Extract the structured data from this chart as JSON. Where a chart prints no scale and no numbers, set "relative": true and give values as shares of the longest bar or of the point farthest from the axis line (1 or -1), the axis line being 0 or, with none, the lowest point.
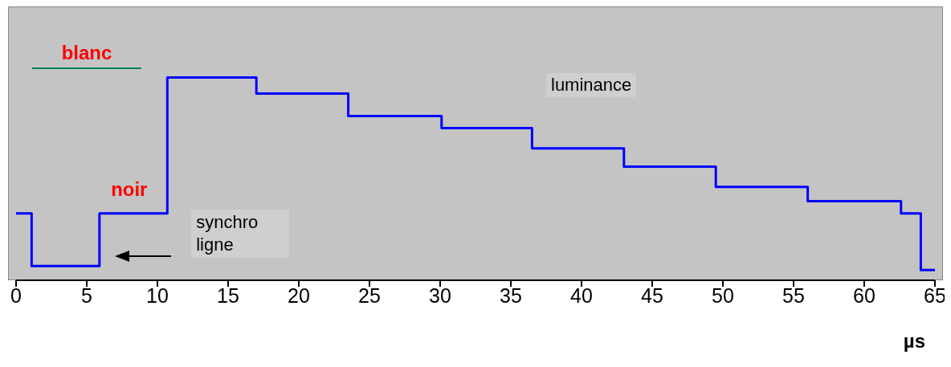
{
  "chart_data": {
    "type": "step",
    "relative": true,
    "xlabel": "µs",
    "xlim": [
      0,
      65
    ],
    "xticks": [
      0,
      5,
      10,
      15,
      20,
      25,
      30,
      35,
      40,
      45,
      50,
      55,
      60,
      65
    ],
    "marker": "none",
    "line_style": "solid",
    "annotations": [
      "blanc",
      "noir",
      "synchro ligne",
      "luminance"
    ],
    "series": [
      {
        "color": "#0000ff",
        "x": [
          0,
          1.0,
          1.1,
          5.9,
          10.5,
          10.7,
          17.0,
          23.5,
          30.1,
          36.5,
          43.0,
          49.5,
          56.0,
          62.6,
          63.6,
          64.0,
          65
        ],
        "values": [
          0.33,
          0.33,
          0.07,
          0.33,
          0.33,
          1,
          0.92,
          0.81,
          0.75,
          0.65,
          0.56,
          0.46,
          0.39,
          0.33,
          0.33,
          0.05,
          0.05
        ]
      }
    ]
  }
}
